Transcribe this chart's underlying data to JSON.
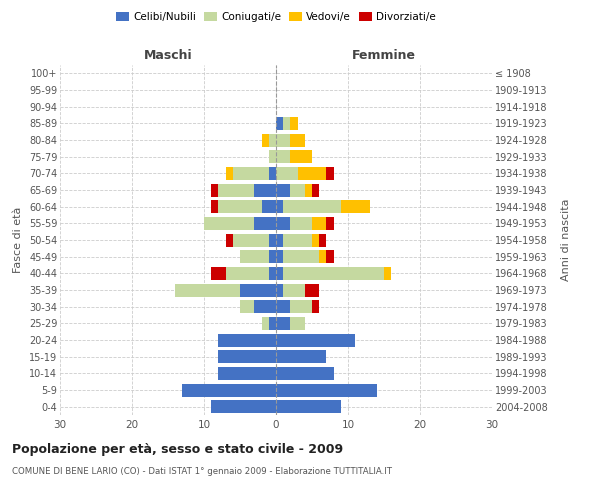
{
  "age_groups": [
    "0-4",
    "5-9",
    "10-14",
    "15-19",
    "20-24",
    "25-29",
    "30-34",
    "35-39",
    "40-44",
    "45-49",
    "50-54",
    "55-59",
    "60-64",
    "65-69",
    "70-74",
    "75-79",
    "80-84",
    "85-89",
    "90-94",
    "95-99",
    "100+"
  ],
  "birth_years": [
    "2004-2008",
    "1999-2003",
    "1994-1998",
    "1989-1993",
    "1984-1988",
    "1979-1983",
    "1974-1978",
    "1969-1973",
    "1964-1968",
    "1959-1963",
    "1954-1958",
    "1949-1953",
    "1944-1948",
    "1939-1943",
    "1934-1938",
    "1929-1933",
    "1924-1928",
    "1919-1923",
    "1914-1918",
    "1909-1913",
    "≤ 1908"
  ],
  "colors": {
    "celibi": "#4472C4",
    "coniugati": "#c5d9a0",
    "vedovi": "#ffc000",
    "divorziati": "#cc0000"
  },
  "males": {
    "celibi": [
      9,
      13,
      8,
      8,
      8,
      1,
      3,
      5,
      1,
      1,
      1,
      3,
      2,
      3,
      1,
      0,
      0,
      0,
      0,
      0,
      0
    ],
    "coniugati": [
      0,
      0,
      0,
      0,
      0,
      1,
      2,
      9,
      6,
      4,
      5,
      7,
      6,
      5,
      5,
      1,
      1,
      0,
      0,
      0,
      0
    ],
    "vedovi": [
      0,
      0,
      0,
      0,
      0,
      0,
      0,
      0,
      0,
      0,
      0,
      0,
      0,
      0,
      1,
      0,
      1,
      0,
      0,
      0,
      0
    ],
    "divorziati": [
      0,
      0,
      0,
      0,
      0,
      0,
      0,
      0,
      2,
      0,
      1,
      0,
      1,
      1,
      0,
      0,
      0,
      0,
      0,
      0,
      0
    ]
  },
  "females": {
    "nubili": [
      9,
      14,
      8,
      7,
      11,
      2,
      2,
      1,
      1,
      1,
      1,
      2,
      1,
      2,
      0,
      0,
      0,
      1,
      0,
      0,
      0
    ],
    "coniugate": [
      0,
      0,
      0,
      0,
      0,
      2,
      3,
      3,
      14,
      5,
      4,
      3,
      8,
      2,
      3,
      2,
      2,
      1,
      0,
      0,
      0
    ],
    "vedove": [
      0,
      0,
      0,
      0,
      0,
      0,
      0,
      0,
      1,
      1,
      1,
      2,
      4,
      1,
      4,
      3,
      2,
      1,
      0,
      0,
      0
    ],
    "divorziate": [
      0,
      0,
      0,
      0,
      0,
      0,
      1,
      2,
      0,
      1,
      1,
      1,
      0,
      1,
      1,
      0,
      0,
      0,
      0,
      0,
      0
    ]
  },
  "xlim": 30,
  "title": "Popolazione per età, sesso e stato civile - 2009",
  "subtitle": "COMUNE DI BENE LARIO (CO) - Dati ISTAT 1° gennaio 2009 - Elaborazione TUTTITALIA.IT",
  "ylabel_left": "Fasce di età",
  "ylabel_right": "Anni di nascita",
  "xlabel_left": "Maschi",
  "xlabel_right": "Femmine"
}
